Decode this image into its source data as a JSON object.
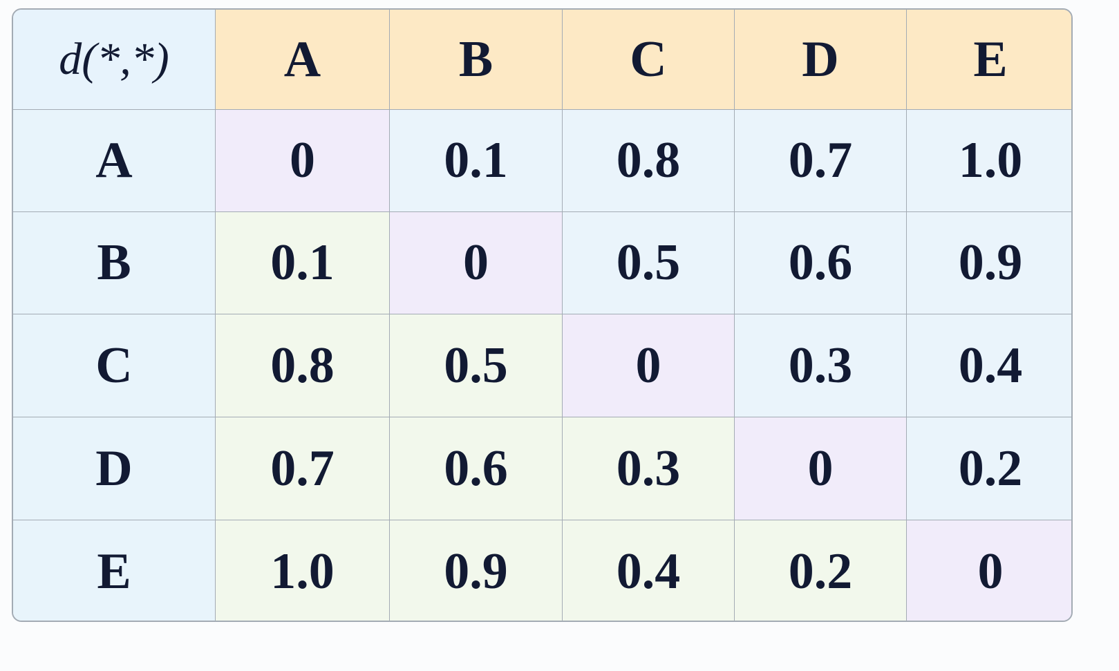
{
  "table": {
    "corner": "d(*,*)",
    "columns": [
      "A",
      "B",
      "C",
      "D",
      "E"
    ],
    "rows": [
      {
        "label": "A",
        "cells": [
          "0",
          "0.1",
          "0.8",
          "0.7",
          "1.0"
        ]
      },
      {
        "label": "B",
        "cells": [
          "0.1",
          "0",
          "0.5",
          "0.6",
          "0.9"
        ]
      },
      {
        "label": "C",
        "cells": [
          "0.8",
          "0.5",
          "0",
          "0.3",
          "0.4"
        ]
      },
      {
        "label": "D",
        "cells": [
          "0.7",
          "0.6",
          "0.3",
          "0",
          "0.2"
        ]
      },
      {
        "label": "E",
        "cells": [
          "1.0",
          "0.9",
          "0.4",
          "0.2",
          "0"
        ]
      }
    ]
  }
}
